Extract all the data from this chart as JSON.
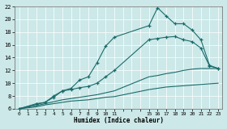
{
  "xlabel": "Humidex (Indice chaleur)",
  "ylabel": "",
  "bg_color": "#cce8e8",
  "grid_color": "#b8d8d8",
  "line_color": "#1a6b6b",
  "xlim": [
    -0.5,
    23.5
  ],
  "ylim": [
    6,
    22
  ],
  "xtick_positions": [
    0,
    1,
    2,
    3,
    4,
    5,
    6,
    7,
    8,
    9,
    10,
    11,
    12,
    13,
    14,
    15,
    16,
    17,
    18,
    19,
    20,
    21,
    22,
    23
  ],
  "xtick_labels": [
    "0",
    "1",
    "2",
    "3",
    "4",
    "5",
    "6",
    "7",
    "8",
    "9",
    "10",
    "11",
    "",
    "",
    "",
    "15",
    "16",
    "17",
    "18",
    "19",
    "20",
    "21",
    "22",
    "23"
  ],
  "yticks": [
    6,
    8,
    10,
    12,
    14,
    16,
    18,
    20,
    22
  ],
  "lines": [
    {
      "x": [
        0,
        2,
        3,
        4,
        5,
        6,
        7,
        8,
        9,
        10,
        11,
        15,
        16,
        17,
        18,
        19,
        20,
        21,
        22,
        23
      ],
      "y": [
        6,
        6.8,
        7.0,
        8.0,
        8.8,
        9.2,
        10.5,
        11.0,
        13.2,
        15.8,
        17.2,
        19.0,
        21.8,
        20.5,
        19.3,
        19.3,
        18.3,
        16.8,
        12.8,
        12.3
      ],
      "marker": true
    },
    {
      "x": [
        0,
        2,
        3,
        4,
        5,
        6,
        7,
        8,
        9,
        10,
        11,
        15,
        16,
        17,
        18,
        19,
        20,
        21,
        22,
        23
      ],
      "y": [
        6,
        6.7,
        7.0,
        7.8,
        8.8,
        9.0,
        9.3,
        9.5,
        10.0,
        11.0,
        12.0,
        16.8,
        17.0,
        17.2,
        17.3,
        16.8,
        16.5,
        15.5,
        12.7,
        12.3
      ],
      "marker": true
    },
    {
      "x": [
        0,
        2,
        3,
        4,
        5,
        6,
        7,
        8,
        9,
        10,
        11,
        15,
        16,
        17,
        18,
        19,
        20,
        21,
        22,
        23
      ],
      "y": [
        6,
        6.5,
        6.8,
        7.1,
        7.4,
        7.6,
        7.8,
        8.0,
        8.2,
        8.5,
        8.8,
        11.0,
        11.2,
        11.5,
        11.7,
        12.0,
        12.2,
        12.3,
        12.3,
        12.3
      ],
      "marker": false
    },
    {
      "x": [
        0,
        2,
        3,
        4,
        5,
        6,
        7,
        8,
        9,
        10,
        11,
        15,
        16,
        17,
        18,
        19,
        20,
        21,
        22,
        23
      ],
      "y": [
        6,
        6.3,
        6.6,
        6.8,
        7.0,
        7.2,
        7.3,
        7.4,
        7.6,
        7.8,
        7.9,
        9.0,
        9.2,
        9.4,
        9.5,
        9.6,
        9.7,
        9.8,
        9.9,
        10.0
      ],
      "marker": false
    }
  ]
}
